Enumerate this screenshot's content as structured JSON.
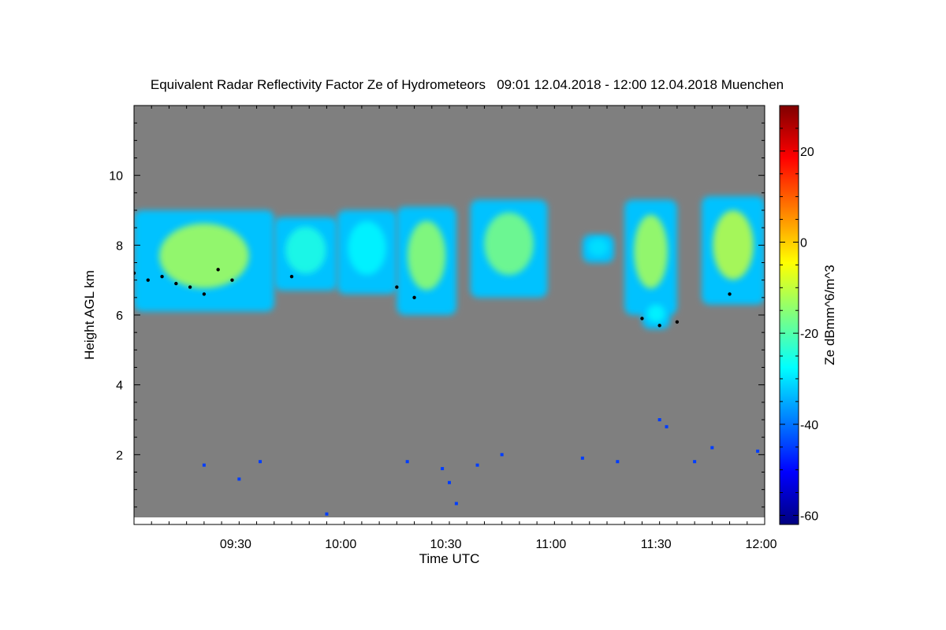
{
  "chart_data": {
    "type": "heatmap",
    "title": "Equivalent Radar Reflectivity Factor Ze of Hydrometeors",
    "subtitle": "09:01 12.04.2018 - 12:00 12.04.2018 Muenchen",
    "xlabel": "Time UTC",
    "ylabel": "Height AGL km",
    "colorbar_label": "Ze dBmm^6/m^3",
    "x_ticks": [
      "09:30",
      "10:00",
      "10:30",
      "11:00",
      "11:30",
      "12:00"
    ],
    "x_tick_minutes": [
      29,
      59,
      89,
      119,
      149,
      179
    ],
    "xlim_minutes": [
      0,
      180
    ],
    "x_start": "09:01",
    "y_ticks": [
      "2",
      "4",
      "6",
      "8",
      "10"
    ],
    "y_tick_values": [
      2,
      4,
      6,
      8,
      10
    ],
    "ylim": [
      0,
      12
    ],
    "colorbar_ticks": [
      "20",
      "0",
      "-20",
      "-40",
      "-60"
    ],
    "colorbar_tick_values": [
      20,
      0,
      -20,
      -40,
      -60
    ],
    "zlim": [
      -62,
      30
    ],
    "background_color": "#7f7f7f",
    "colormap": [
      "#00007f",
      "#0000ff",
      "#007fff",
      "#00ffff",
      "#7fff7f",
      "#ffff00",
      "#ff7f00",
      "#ff0000",
      "#7f0000"
    ],
    "cloud_layers": [
      {
        "t0": 0,
        "t1": 40,
        "base": 6.1,
        "top": 9.0,
        "core": -12
      },
      {
        "t0": 40,
        "t1": 58,
        "base": 6.7,
        "top": 8.8,
        "core": -25
      },
      {
        "t0": 58,
        "t1": 75,
        "base": 6.6,
        "top": 9.0,
        "core": -28
      },
      {
        "t0": 75,
        "t1": 92,
        "base": 6.0,
        "top": 9.1,
        "core": -14
      },
      {
        "t0": 96,
        "t1": 118,
        "base": 6.5,
        "top": 9.3,
        "core": -16
      },
      {
        "t0": 128,
        "t1": 137,
        "base": 7.5,
        "top": 8.3,
        "core": -30
      },
      {
        "t0": 140,
        "t1": 155,
        "base": 6.0,
        "top": 9.3,
        "core": -12
      },
      {
        "t0": 145,
        "t1": 153,
        "base": 5.6,
        "top": 6.4,
        "core": -28
      },
      {
        "t0": 162,
        "t1": 180,
        "base": 6.3,
        "top": 9.4,
        "core": -10
      }
    ],
    "cloud_base_km": [
      [
        0,
        7.2
      ],
      [
        4,
        7.0
      ],
      [
        8,
        7.1
      ],
      [
        12,
        6.9
      ],
      [
        16,
        6.8
      ],
      [
        20,
        6.6
      ],
      [
        24,
        7.3
      ],
      [
        28,
        7.0
      ],
      [
        45,
        7.1
      ],
      [
        75,
        6.8
      ],
      [
        80,
        6.5
      ],
      [
        145,
        5.9
      ],
      [
        150,
        5.7
      ],
      [
        155,
        5.8
      ],
      [
        170,
        6.6
      ]
    ],
    "low_returns": [
      [
        20,
        1.7
      ],
      [
        30,
        1.3
      ],
      [
        36,
        1.8
      ],
      [
        55,
        0.3
      ],
      [
        78,
        1.8
      ],
      [
        88,
        1.6
      ],
      [
        90,
        1.2
      ],
      [
        92,
        0.6
      ],
      [
        98,
        1.7
      ],
      [
        105,
        2.0
      ],
      [
        128,
        1.9
      ],
      [
        138,
        1.8
      ],
      [
        150,
        3.0
      ],
      [
        152,
        2.8
      ],
      [
        160,
        1.8
      ],
      [
        165,
        2.2
      ],
      [
        178,
        2.1
      ]
    ]
  }
}
